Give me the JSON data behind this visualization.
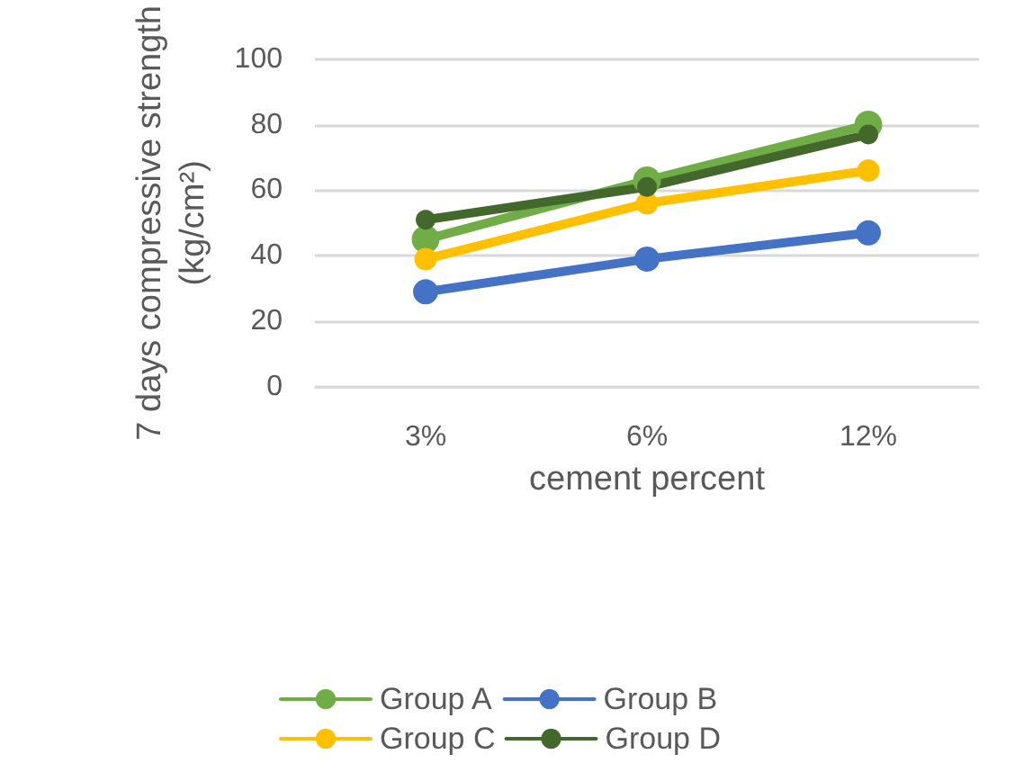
{
  "chart_data": {
    "type": "line",
    "xlabel": "cement percent",
    "ylabel": "7 days compressive strength (kg/cm²)",
    "categories": [
      "3%",
      "6%",
      "12%"
    ],
    "series": [
      {
        "name": "Group A",
        "color": "#70ad47",
        "values": [
          45,
          63,
          80
        ]
      },
      {
        "name": "Group B",
        "color": "#4472c4",
        "values": [
          29,
          39,
          47
        ]
      },
      {
        "name": "Group C",
        "color": "#ffc000",
        "values": [
          39,
          56,
          66
        ]
      },
      {
        "name": "Group D",
        "color": "#43682b",
        "values": [
          51,
          61,
          77
        ]
      }
    ],
    "ylim": [
      0,
      100
    ],
    "yticks": [
      0,
      20,
      40,
      60,
      80,
      100
    ],
    "grid": "y",
    "legend": "bottom",
    "marker": "circle",
    "line_style": "solid"
  }
}
